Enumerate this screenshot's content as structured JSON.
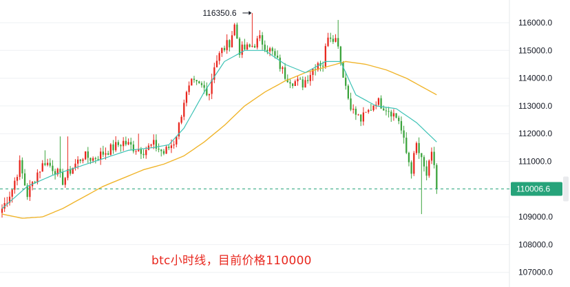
{
  "caption": "btc小时线，目前价格110000",
  "colors": {
    "up": "#e8261d",
    "down": "#3aa33b",
    "ma_fast": "#3cc2b5",
    "ma_slow": "#f0b429",
    "price_tag": "#26a37a",
    "grid": "#eef0f3",
    "dash_line": "#26a37a"
  },
  "chart_data": {
    "type": "candlestick",
    "ylim": [
      106800,
      116800
    ],
    "y_ticks": [
      "116000.0",
      "115000.0",
      "114000.0",
      "113000.0",
      "112000.0",
      "111000.0",
      "109000.0",
      "108000.0",
      "107000.0"
    ],
    "y_tick_values": [
      116000,
      115000,
      114000,
      113000,
      112000,
      111000,
      109000,
      108000,
      107000
    ],
    "current_price": 110006.6,
    "current_price_label": "110006.6",
    "high_label": "116350.6",
    "high_value": 116350.6,
    "grid": true,
    "anchors": [
      [
        0,
        109300
      ],
      [
        4,
        110000
      ],
      [
        7,
        110900
      ],
      [
        10,
        109800
      ],
      [
        14,
        110600
      ],
      [
        17,
        111000
      ],
      [
        21,
        110700
      ],
      [
        24,
        110300
      ],
      [
        28,
        110800
      ],
      [
        32,
        111200
      ],
      [
        36,
        111100
      ],
      [
        40,
        111300
      ],
      [
        44,
        111500
      ],
      [
        48,
        111700
      ],
      [
        52,
        111500
      ],
      [
        56,
        111400
      ],
      [
        60,
        111600
      ],
      [
        64,
        111300
      ],
      [
        68,
        111700
      ],
      [
        70,
        112300
      ],
      [
        72,
        113200
      ],
      [
        75,
        113800
      ],
      [
        79,
        113700
      ],
      [
        82,
        113500
      ],
      [
        84,
        114500
      ],
      [
        87,
        115000
      ],
      [
        90,
        115300
      ],
      [
        92,
        115900
      ],
      [
        94,
        115000
      ],
      [
        98,
        115100
      ],
      [
        102,
        115400
      ],
      [
        104,
        115200
      ],
      [
        107,
        114900
      ],
      [
        109,
        114600
      ],
      [
        112,
        114100
      ],
      [
        115,
        113900
      ],
      [
        119,
        113800
      ],
      [
        122,
        114200
      ],
      [
        125,
        114600
      ],
      [
        127,
        114500
      ],
      [
        129,
        115600
      ],
      [
        131,
        115500
      ],
      [
        133,
        115300
      ],
      [
        134,
        114600
      ],
      [
        137,
        113300
      ],
      [
        139,
        112800
      ],
      [
        142,
        112500
      ],
      [
        145,
        112800
      ],
      [
        148,
        113200
      ],
      [
        151,
        113000
      ],
      [
        154,
        112800
      ],
      [
        157,
        112500
      ],
      [
        160,
        111300
      ],
      [
        162,
        110700
      ],
      [
        164,
        111600
      ],
      [
        166,
        111000
      ],
      [
        168,
        110500
      ],
      [
        170,
        111200
      ],
      [
        171,
        110900
      ],
      [
        172,
        110100
      ]
    ],
    "ma_fast_anchors": [
      [
        0,
        109300
      ],
      [
        10,
        110100
      ],
      [
        20,
        110500
      ],
      [
        30,
        110800
      ],
      [
        40,
        111100
      ],
      [
        50,
        111400
      ],
      [
        60,
        111500
      ],
      [
        66,
        111600
      ],
      [
        72,
        112200
      ],
      [
        80,
        113500
      ],
      [
        88,
        114600
      ],
      [
        96,
        115000
      ],
      [
        104,
        115000
      ],
      [
        112,
        114500
      ],
      [
        120,
        114200
      ],
      [
        128,
        114600
      ],
      [
        134,
        114600
      ],
      [
        140,
        113400
      ],
      [
        148,
        113000
      ],
      [
        156,
        112900
      ],
      [
        164,
        112400
      ],
      [
        172,
        111700
      ]
    ],
    "ma_slow_anchors": [
      [
        0,
        109100
      ],
      [
        8,
        108950
      ],
      [
        16,
        109000
      ],
      [
        24,
        109300
      ],
      [
        32,
        109700
      ],
      [
        40,
        110100
      ],
      [
        48,
        110400
      ],
      [
        56,
        110700
      ],
      [
        64,
        110900
      ],
      [
        72,
        111200
      ],
      [
        80,
        111700
      ],
      [
        88,
        112300
      ],
      [
        96,
        113000
      ],
      [
        104,
        113500
      ],
      [
        112,
        113900
      ],
      [
        120,
        114200
      ],
      [
        128,
        114400
      ],
      [
        136,
        114600
      ],
      [
        144,
        114500
      ],
      [
        152,
        114300
      ],
      [
        160,
        114000
      ],
      [
        168,
        113600
      ],
      [
        172,
        113400
      ]
    ],
    "spikes": [
      [
        17,
        111400
      ],
      [
        23,
        111900
      ],
      [
        26,
        111900
      ],
      [
        54,
        112000
      ],
      [
        99,
        116350.6
      ],
      [
        133,
        116100
      ],
      [
        166,
        109100
      ]
    ]
  }
}
